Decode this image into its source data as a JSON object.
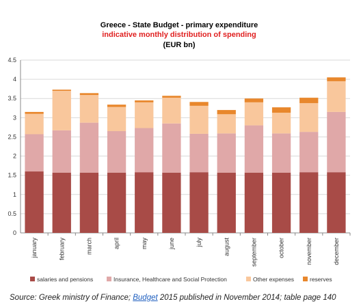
{
  "chart_data": {
    "type": "bar",
    "stacked": true,
    "title": "Greece - State Budget - primary expenditure",
    "subtitle": "indicative monthly distribution of spending",
    "unit_label": "(EUR bn)",
    "categories": [
      "january",
      "february",
      "march",
      "april",
      "may",
      "june",
      "july",
      "august",
      "september",
      "october",
      "november",
      "december"
    ],
    "series": [
      {
        "name": "salaries and pensions",
        "color": "#a84b47",
        "values": [
          1.6,
          1.57,
          1.57,
          1.57,
          1.58,
          1.57,
          1.58,
          1.57,
          1.57,
          1.57,
          1.58,
          1.58
        ]
      },
      {
        "name": "Insurance, Healthcare and Social Protection",
        "color": "#e0a8a8",
        "values": [
          0.97,
          1.1,
          1.3,
          1.08,
          1.15,
          1.28,
          1.0,
          1.02,
          1.23,
          1.02,
          1.05,
          1.57
        ]
      },
      {
        "name": "Other expenses",
        "color": "#f9c79c",
        "values": [
          0.53,
          1.03,
          0.72,
          0.63,
          0.67,
          0.67,
          0.73,
          0.5,
          0.6,
          0.54,
          0.75,
          0.8
        ]
      },
      {
        "name": "reserves",
        "color": "#e8872c",
        "values": [
          0.05,
          0.03,
          0.05,
          0.06,
          0.05,
          0.05,
          0.1,
          0.11,
          0.1,
          0.14,
          0.14,
          0.1
        ]
      }
    ],
    "ylim": [
      0,
      4.5
    ],
    "yticks": [
      "0",
      "0.5",
      "1",
      "1.5",
      "2",
      "2.5",
      "3",
      "3.5",
      "4",
      "4.5"
    ],
    "grid": true,
    "legend_position": "bottom"
  },
  "source": {
    "prefix": "Source: Greek ministry of Finance; ",
    "link_text": "Budget",
    "suffix": " 2015 published in November 2014; table page 140"
  }
}
